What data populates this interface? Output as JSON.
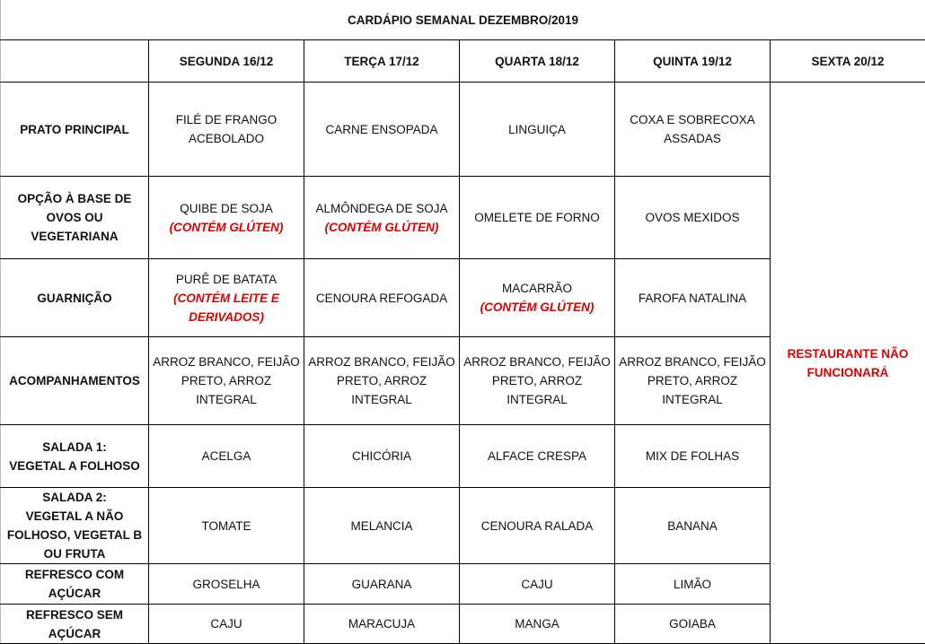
{
  "title": "CARDÁPIO SEMANAL DEZEMBRO/2019",
  "days": [
    "SEGUNDA 16/12",
    "TERÇA 17/12",
    "QUARTA 18/12",
    "QUINTA 19/12",
    "SEXTA 20/12"
  ],
  "friday_notice": "RESTAURANTE NÃO\nFUNCIONARÁ",
  "colors": {
    "allergen": "#e00000",
    "notice": "#e00000"
  },
  "rows": [
    {
      "label": "PRATO PRINCIPAL",
      "cells": [
        {
          "text": "FILÉ DE FRANGO\nACEBOLADO"
        },
        {
          "text": "CARNE ENSOPADA"
        },
        {
          "text": "LINGUIÇA"
        },
        {
          "text": "COXA E SOBRECOXA\nASSADAS"
        }
      ]
    },
    {
      "label": "OPÇÃO À BASE DE\nOVOS OU\nVEGETARIANA",
      "cells": [
        {
          "text": "QUIBE DE  SOJA",
          "note": "(CONTÉM GLÚTEN)"
        },
        {
          "text": "ALMÔNDEGA DE SOJA",
          "note": "(CONTÉM GLÚTEN)"
        },
        {
          "text": "OMELETE DE FORNO"
        },
        {
          "text": "OVOS MEXIDOS"
        }
      ]
    },
    {
      "label": "GUARNIÇÃO",
      "cells": [
        {
          "text": "PURÊ DE BATATA",
          "note": "(CONTÉM LEITE E\nDERIVADOS)"
        },
        {
          "text": "CENOURA REFOGADA"
        },
        {
          "text": "MACARRÃO",
          "note": "(CONTÉM GLÚTEN)"
        },
        {
          "text": "FAROFA NATALINA"
        }
      ]
    },
    {
      "label": "ACOMPANHAMENTOS",
      "cells": [
        {
          "text": "ARROZ BRANCO, FEIJÃO\nPRETO, ARROZ INTEGRAL"
        },
        {
          "text": "ARROZ BRANCO, FEIJÃO\nPRETO, ARROZ INTEGRAL"
        },
        {
          "text": "ARROZ BRANCO, FEIJÃO\nPRETO, ARROZ INTEGRAL"
        },
        {
          "text": "ARROZ BRANCO, FEIJÃO\nPRETO, ARROZ INTEGRAL"
        }
      ]
    },
    {
      "label": "SALADA 1:\nVEGETAL A FOLHOSO",
      "cells": [
        {
          "text": "ACELGA"
        },
        {
          "text": "CHICÓRIA"
        },
        {
          "text": "ALFACE CRESPA"
        },
        {
          "text": "MIX DE FOLHAS"
        }
      ]
    },
    {
      "label": "SALADA 2:\nVEGETAL A NÃO\nFOLHOSO, VEGETAL B\nOU FRUTA",
      "cells": [
        {
          "text": "TOMATE"
        },
        {
          "text": "MELANCIA"
        },
        {
          "text": "CENOURA RALADA"
        },
        {
          "text": "BANANA"
        }
      ]
    },
    {
      "label": "REFRESCO COM\nAÇÚCAR",
      "cells": [
        {
          "text": "GROSELHA"
        },
        {
          "text": "GUARANA"
        },
        {
          "text": "CAJU"
        },
        {
          "text": "LIMÃO"
        }
      ]
    },
    {
      "label": "REFRESCO SEM\nAÇÚCAR",
      "cells": [
        {
          "text": "CAJU"
        },
        {
          "text": "MARACUJA"
        },
        {
          "text": "MANGA"
        },
        {
          "text": "GOIABA"
        }
      ]
    }
  ]
}
